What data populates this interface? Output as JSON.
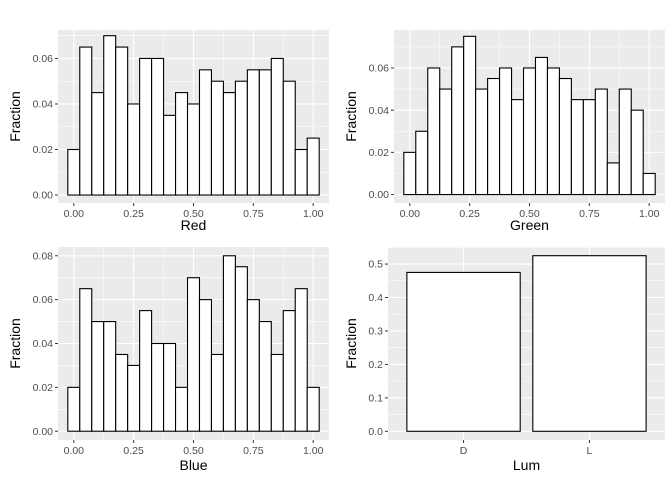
{
  "chart_data": [
    {
      "id": "red",
      "type": "histogram",
      "xlabel": "Red",
      "ylabel": "Fraction",
      "xlim": [
        -0.066,
        1.066
      ],
      "ylim": [
        -0.0035,
        0.0725
      ],
      "binwidth": 0.05,
      "x_breaks": [
        0.0,
        0.25,
        0.5,
        0.75,
        1.0
      ],
      "x_tick_labels": [
        "0.00",
        "0.25",
        "0.50",
        "0.75",
        "1.00"
      ],
      "y_breaks": [
        0.0,
        0.02,
        0.04,
        0.06
      ],
      "y_tick_labels": [
        "0.00",
        "0.02",
        "0.04",
        "0.06"
      ],
      "x_minor": [
        0.125,
        0.375,
        0.625,
        0.875
      ],
      "y_minor": [
        0.01,
        0.03,
        0.05,
        0.07
      ],
      "x": [
        0.0,
        0.05,
        0.1,
        0.15,
        0.2,
        0.25,
        0.3,
        0.35,
        0.4,
        0.45,
        0.5,
        0.55,
        0.6,
        0.65,
        0.7,
        0.75,
        0.8,
        0.85,
        0.9,
        0.95,
        1.0
      ],
      "values": [
        0.02,
        0.065,
        0.045,
        0.07,
        0.065,
        0.04,
        0.06,
        0.06,
        0.035,
        0.045,
        0.04,
        0.055,
        0.05,
        0.045,
        0.05,
        0.055,
        0.055,
        0.06,
        0.05,
        0.02,
        0.025
      ]
    },
    {
      "id": "green",
      "type": "histogram",
      "xlabel": "Green",
      "ylabel": "Fraction",
      "xlim": [
        -0.066,
        1.066
      ],
      "ylim": [
        -0.004,
        0.078
      ],
      "binwidth": 0.05,
      "x_breaks": [
        0.0,
        0.25,
        0.5,
        0.75,
        1.0
      ],
      "x_tick_labels": [
        "0.00",
        "0.25",
        "0.50",
        "0.75",
        "1.00"
      ],
      "y_breaks": [
        0.0,
        0.02,
        0.04,
        0.06
      ],
      "y_tick_labels": [
        "0.00",
        "0.02",
        "0.04",
        "0.06"
      ],
      "x_minor": [
        0.125,
        0.375,
        0.625,
        0.875
      ],
      "y_minor": [
        0.01,
        0.03,
        0.05,
        0.07
      ],
      "x": [
        0.0,
        0.05,
        0.1,
        0.15,
        0.2,
        0.25,
        0.3,
        0.35,
        0.4,
        0.45,
        0.5,
        0.55,
        0.6,
        0.65,
        0.7,
        0.75,
        0.8,
        0.85,
        0.9,
        0.95,
        1.0
      ],
      "values": [
        0.02,
        0.03,
        0.06,
        0.05,
        0.07,
        0.075,
        0.05,
        0.055,
        0.06,
        0.045,
        0.06,
        0.065,
        0.06,
        0.055,
        0.045,
        0.045,
        0.05,
        0.015,
        0.05,
        0.04,
        0.01
      ]
    },
    {
      "id": "blue",
      "type": "histogram",
      "xlabel": "Blue",
      "ylabel": "Fraction",
      "xlim": [
        -0.066,
        1.066
      ],
      "ylim": [
        -0.004,
        0.084
      ],
      "binwidth": 0.05,
      "x_breaks": [
        0.0,
        0.25,
        0.5,
        0.75,
        1.0
      ],
      "x_tick_labels": [
        "0.00",
        "0.25",
        "0.50",
        "0.75",
        "1.00"
      ],
      "y_breaks": [
        0.0,
        0.02,
        0.04,
        0.06,
        0.08
      ],
      "y_tick_labels": [
        "0.00",
        "0.02",
        "0.04",
        "0.06",
        "0.08"
      ],
      "x_minor": [
        0.125,
        0.375,
        0.625,
        0.875
      ],
      "y_minor": [
        0.01,
        0.03,
        0.05,
        0.07
      ],
      "x": [
        0.0,
        0.05,
        0.1,
        0.15,
        0.2,
        0.25,
        0.3,
        0.35,
        0.4,
        0.45,
        0.5,
        0.55,
        0.6,
        0.65,
        0.7,
        0.75,
        0.8,
        0.85,
        0.9,
        0.95,
        1.0
      ],
      "values": [
        0.02,
        0.065,
        0.05,
        0.05,
        0.035,
        0.03,
        0.055,
        0.04,
        0.04,
        0.02,
        0.07,
        0.06,
        0.035,
        0.08,
        0.075,
        0.06,
        0.05,
        0.035,
        0.055,
        0.065,
        0.02
      ]
    },
    {
      "id": "lum",
      "type": "bar",
      "xlabel": "Lum",
      "ylabel": "Fraction",
      "ylim": [
        -0.026,
        0.551
      ],
      "categories": [
        "D",
        "L"
      ],
      "values": [
        0.475,
        0.525
      ],
      "y_breaks": [
        0.0,
        0.1,
        0.2,
        0.3,
        0.4,
        0.5
      ],
      "y_tick_labels": [
        "0.0",
        "0.1",
        "0.2",
        "0.3",
        "0.4",
        "0.5"
      ],
      "y_minor": [
        0.05,
        0.15,
        0.25,
        0.35,
        0.45,
        0.55
      ]
    }
  ]
}
